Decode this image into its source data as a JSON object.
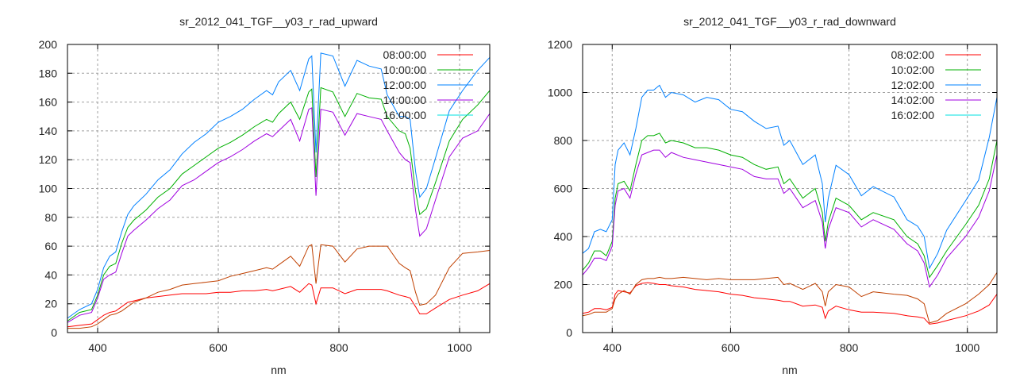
{
  "chart_data": [
    {
      "type": "line",
      "title": "sr_2012_041_TGF__y03_r_rad_upward",
      "xlabel": "nm",
      "ylabel": "",
      "xlim": [
        350,
        1050
      ],
      "ylim": [
        0,
        200
      ],
      "xticks": [
        400,
        600,
        800,
        1000
      ],
      "yticks": [
        0,
        20,
        40,
        60,
        80,
        100,
        120,
        140,
        160,
        180,
        200
      ],
      "grid": true,
      "legend_position": "top-right",
      "x": [
        350,
        370,
        390,
        400,
        410,
        420,
        430,
        440,
        450,
        460,
        480,
        500,
        520,
        540,
        560,
        580,
        600,
        620,
        640,
        660,
        680,
        690,
        700,
        720,
        735,
        750,
        755,
        762,
        770,
        790,
        810,
        830,
        850,
        870,
        880,
        900,
        910,
        918,
        927,
        934,
        945,
        960,
        983,
        1005,
        1030,
        1050
      ],
      "series": [
        {
          "name": "08:00:00",
          "color": "#ff0000",
          "legend_color": "#ff0000",
          "values": [
            4,
            5,
            6,
            9,
            12,
            14,
            15,
            18,
            21,
            22,
            24,
            25,
            26,
            27,
            27,
            27,
            28,
            28,
            29,
            29,
            30,
            29,
            30,
            32,
            28,
            34,
            33,
            20,
            31,
            31,
            27,
            30,
            30,
            30,
            29,
            26,
            25,
            24,
            18,
            13,
            13,
            17,
            23,
            26,
            29,
            34
          ]
        },
        {
          "name": "10:00:00",
          "color": "#00b000",
          "legend_color": "#00b000",
          "values": [
            8,
            14,
            16,
            26,
            40,
            46,
            48,
            62,
            73,
            78,
            85,
            94,
            100,
            110,
            116,
            122,
            128,
            132,
            137,
            143,
            148,
            146,
            152,
            160,
            148,
            167,
            169,
            108,
            170,
            167,
            150,
            166,
            163,
            162,
            150,
            140,
            138,
            128,
            98,
            82,
            86,
            104,
            133,
            148,
            158,
            168
          ]
        },
        {
          "name": "12:00:00",
          "color": "#0080ff",
          "legend_color": "#0080ff",
          "values": [
            10,
            16,
            20,
            30,
            45,
            53,
            56,
            70,
            82,
            88,
            96,
            106,
            113,
            124,
            132,
            138,
            146,
            150,
            155,
            162,
            168,
            165,
            174,
            182,
            168,
            190,
            192,
            125,
            194,
            192,
            171,
            189,
            185,
            183,
            165,
            150,
            150,
            148,
            112,
            94,
            100,
            121,
            154,
            168,
            182,
            191
          ]
        },
        {
          "name": "14:00:00",
          "color": "#a000e0",
          "legend_color": "#a000e0",
          "values": [
            7,
            12,
            14,
            24,
            37,
            40,
            42,
            55,
            67,
            71,
            78,
            86,
            92,
            102,
            106,
            112,
            118,
            122,
            127,
            133,
            138,
            136,
            140,
            148,
            133,
            155,
            156,
            95,
            155,
            153,
            137,
            152,
            150,
            148,
            140,
            125,
            120,
            118,
            85,
            67,
            72,
            92,
            122,
            135,
            140,
            152
          ]
        },
        {
          "name": "16:00:00",
          "color": "#c04000",
          "legend_color": "#00e0e0",
          "values": [
            3,
            3,
            4,
            6,
            9,
            12,
            13,
            15,
            18,
            21,
            24,
            28,
            30,
            33,
            34,
            35,
            36,
            39,
            41,
            43,
            45,
            44,
            47,
            53,
            46,
            60,
            61,
            34,
            61,
            60,
            49,
            58,
            60,
            60,
            60,
            48,
            45,
            43,
            28,
            19,
            20,
            26,
            45,
            55,
            56,
            57
          ]
        }
      ]
    },
    {
      "type": "line",
      "title": "sr_2012_041_TGF__y03_r_rad_downward",
      "xlabel": "nm",
      "ylabel": "",
      "xlim": [
        350,
        1050
      ],
      "ylim": [
        0,
        1200
      ],
      "xticks": [
        400,
        600,
        800,
        1000
      ],
      "yticks": [
        0,
        200,
        400,
        600,
        800,
        1000,
        1200
      ],
      "grid": true,
      "legend_position": "top-right",
      "x": [
        350,
        360,
        370,
        380,
        390,
        400,
        405,
        410,
        420,
        430,
        440,
        450,
        460,
        470,
        480,
        490,
        500,
        520,
        540,
        560,
        580,
        600,
        620,
        640,
        660,
        680,
        690,
        700,
        722,
        743,
        755,
        760,
        765,
        778,
        800,
        821,
        841,
        876,
        898,
        916,
        927,
        936,
        950,
        965,
        997,
        1019,
        1037,
        1050
      ],
      "series": [
        {
          "name": "08:02:00",
          "color": "#ff0000",
          "legend_color": "#ff0000",
          "values": [
            80,
            85,
            100,
            100,
            95,
            105,
            160,
            175,
            170,
            165,
            195,
            205,
            208,
            205,
            200,
            200,
            195,
            190,
            180,
            175,
            170,
            160,
            155,
            145,
            140,
            135,
            130,
            130,
            110,
            115,
            105,
            60,
            90,
            110,
            95,
            85,
            85,
            80,
            70,
            65,
            60,
            35,
            40,
            50,
            70,
            90,
            115,
            160
          ]
        },
        {
          "name": "10:02:00",
          "color": "#00b000",
          "legend_color": "#00b000",
          "values": [
            260,
            290,
            340,
            340,
            320,
            380,
            560,
            620,
            630,
            590,
            700,
            800,
            820,
            820,
            830,
            790,
            800,
            790,
            770,
            770,
            760,
            740,
            730,
            700,
            680,
            690,
            620,
            640,
            560,
            600,
            500,
            380,
            460,
            560,
            530,
            470,
            500,
            470,
            400,
            370,
            320,
            230,
            280,
            340,
            450,
            530,
            640,
            800
          ]
        },
        {
          "name": "12:02:00",
          "color": "#0080ff",
          "legend_color": "#0080ff",
          "values": [
            330,
            350,
            420,
            430,
            420,
            470,
            700,
            760,
            790,
            740,
            850,
            980,
            1010,
            1010,
            1030,
            980,
            1000,
            990,
            960,
            980,
            970,
            930,
            920,
            880,
            850,
            860,
            780,
            800,
            700,
            740,
            620,
            460,
            560,
            697,
            658,
            570,
            608,
            565,
            470,
            443,
            400,
            268,
            330,
            426,
            549,
            635,
            813,
            980
          ]
        },
        {
          "name": "14:02:00",
          "color": "#a000e0",
          "legend_color": "#a000e0",
          "values": [
            240,
            270,
            310,
            310,
            300,
            360,
            530,
            590,
            600,
            560,
            660,
            740,
            750,
            760,
            760,
            730,
            750,
            730,
            720,
            710,
            700,
            690,
            680,
            650,
            640,
            640,
            580,
            600,
            520,
            550,
            460,
            350,
            430,
            520,
            500,
            440,
            470,
            430,
            370,
            340,
            290,
            190,
            240,
            310,
            400,
            480,
            590,
            740
          ]
        },
        {
          "name": "16:02:00",
          "color": "#c04000",
          "legend_color": "#00e0e0",
          "values": [
            70,
            75,
            85,
            85,
            85,
            100,
            140,
            160,
            175,
            160,
            200,
            220,
            225,
            225,
            230,
            225,
            225,
            230,
            225,
            220,
            225,
            220,
            220,
            220,
            225,
            230,
            200,
            205,
            180,
            205,
            170,
            110,
            170,
            200,
            190,
            150,
            170,
            160,
            155,
            140,
            120,
            40,
            50,
            80,
            120,
            160,
            200,
            250
          ]
        }
      ]
    }
  ]
}
